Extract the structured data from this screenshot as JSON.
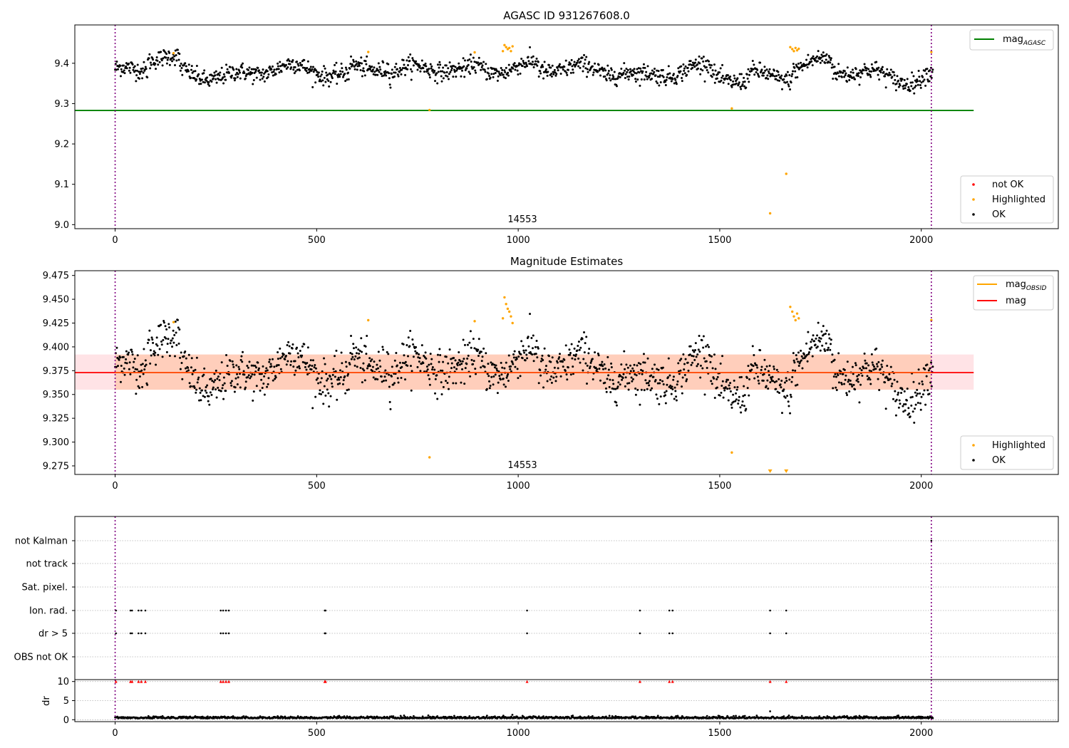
{
  "chart_data": [
    {
      "type": "scatter",
      "title": "AGASC ID 931267608.0",
      "xlabel": "",
      "ylabel": "",
      "xlim": [
        -100,
        2340
      ],
      "ylim": [
        8.99,
        9.495
      ],
      "xticks": [
        0,
        500,
        1000,
        1500,
        2000
      ],
      "yticks": [
        "9.0",
        "9.1",
        "9.2",
        "9.3",
        "9.4"
      ],
      "grid": false,
      "vlines": [
        0,
        2025
      ],
      "obsid_label": "14553",
      "obsid_label_x": 1010,
      "mag_agasc": 9.283,
      "mag_agasc_xrange": [
        -100,
        2130
      ],
      "legend_top": [
        {
          "label": "mag",
          "sub": "AGASC",
          "color": "#008000"
        }
      ],
      "legend_bottom": [
        {
          "label": "not OK",
          "color": "#ff0000"
        },
        {
          "label": "Highlighted",
          "color": "#ffa500"
        },
        {
          "label": "OK",
          "color": "#000000"
        }
      ],
      "legend_placement": [
        "top-right",
        "bottom-right"
      ],
      "series": [
        {
          "name": "OK",
          "color": "#000000",
          "generated": true
        },
        {
          "name": "Highlighted",
          "color": "#ffa500",
          "x": [
            145,
            628,
            892,
            962,
            966,
            970,
            974,
            978,
            982,
            986,
            780,
            1530,
            1625,
            1665,
            1675,
            1680,
            1684,
            1688,
            1692,
            1696,
            2025
          ],
          "values": [
            9.425,
            9.428,
            9.427,
            9.43,
            9.445,
            9.44,
            9.435,
            9.438,
            9.43,
            9.442,
            9.284,
            9.288,
            9.028,
            9.126,
            9.44,
            9.435,
            9.43,
            9.438,
            9.432,
            9.436,
            9.428
          ]
        }
      ]
    },
    {
      "type": "scatter",
      "title": "Magnitude Estimates",
      "xlabel": "",
      "ylabel": "",
      "xlim": [
        -100,
        2340
      ],
      "ylim": [
        9.266,
        9.48
      ],
      "xticks": [
        0,
        500,
        1000,
        1500,
        2000
      ],
      "yticks": [
        "9.275",
        "9.300",
        "9.325",
        "9.350",
        "9.375",
        "9.400",
        "9.425",
        "9.450",
        "9.475"
      ],
      "grid": false,
      "vlines": [
        0,
        2025
      ],
      "obsid_label": "14553",
      "obsid_label_x": 1010,
      "mag_line": 9.373,
      "mag_band": [
        9.355,
        9.392
      ],
      "mag_obsid_band": [
        9.355,
        9.392
      ],
      "mag_xrange": [
        -100,
        2130
      ],
      "legend_top": [
        {
          "label": "mag",
          "sub": "OBSID",
          "color": "#ffa500"
        },
        {
          "label": "mag",
          "color": "#ff0000"
        }
      ],
      "legend_bottom": [
        {
          "label": "Highlighted",
          "color": "#ffa500"
        },
        {
          "label": "OK",
          "color": "#000000"
        }
      ],
      "legend_placement": [
        "top-right",
        "bottom-right"
      ],
      "series": [
        {
          "name": "OK",
          "color": "#000000",
          "generated": true
        },
        {
          "name": "Highlighted",
          "color": "#ffa500",
          "x": [
            145,
            628,
            892,
            962,
            966,
            970,
            974,
            978,
            982,
            986,
            780,
            1530,
            1675,
            1680,
            1684,
            1688,
            1692,
            1696,
            2025
          ],
          "values": [
            9.426,
            9.428,
            9.427,
            9.43,
            9.452,
            9.445,
            9.44,
            9.437,
            9.432,
            9.425,
            9.284,
            9.289,
            9.442,
            9.437,
            9.432,
            9.428,
            9.435,
            9.43,
            9.428
          ]
        },
        {
          "name": "Highlighted-clipped",
          "color": "#ffa500",
          "x": [
            1625,
            1665
          ],
          "values": [
            9.268,
            9.268
          ]
        }
      ]
    },
    {
      "type": "scatter",
      "title": "",
      "xlim": [
        -100,
        2340
      ],
      "categories": [
        "not Kalman",
        "not track",
        "Sat. pixel.",
        "Ion. rad.",
        "dr > 5",
        "OBS not OK"
      ],
      "flag_x": {
        "Ion. rad.": [
          2,
          38,
          42,
          58,
          65,
          75,
          262,
          268,
          275,
          282,
          520,
          522,
          1022,
          1302,
          1375,
          1383,
          1625,
          1665
        ],
        "dr > 5": [
          2,
          38,
          42,
          58,
          65,
          75,
          262,
          268,
          275,
          282,
          520,
          522,
          1022,
          1302,
          1375,
          1383,
          1625,
          1665
        ],
        "not Kalman": [
          2025
        ]
      },
      "vlines": [
        0,
        2025
      ],
      "grid": true
    },
    {
      "type": "scatter",
      "title": "",
      "xlabel": "",
      "ylabel": "dr",
      "xlim": [
        -100,
        2340
      ],
      "ylim": [
        -0.5,
        10.5
      ],
      "xticks": [
        0,
        500,
        1000,
        1500,
        2000
      ],
      "yticks": [
        "0",
        "5",
        "10"
      ],
      "grid": true,
      "vlines": [
        0,
        2025
      ],
      "dr_clipped_x": [
        2,
        38,
        42,
        58,
        65,
        75,
        262,
        268,
        275,
        282,
        520,
        522,
        1022,
        1302,
        1375,
        1383,
        1625,
        1665
      ],
      "series": [
        {
          "name": "dr",
          "color": "#000000",
          "generated": true,
          "outlier_x": [
            1625
          ],
          "outlier_value": 2.2
        }
      ]
    }
  ]
}
